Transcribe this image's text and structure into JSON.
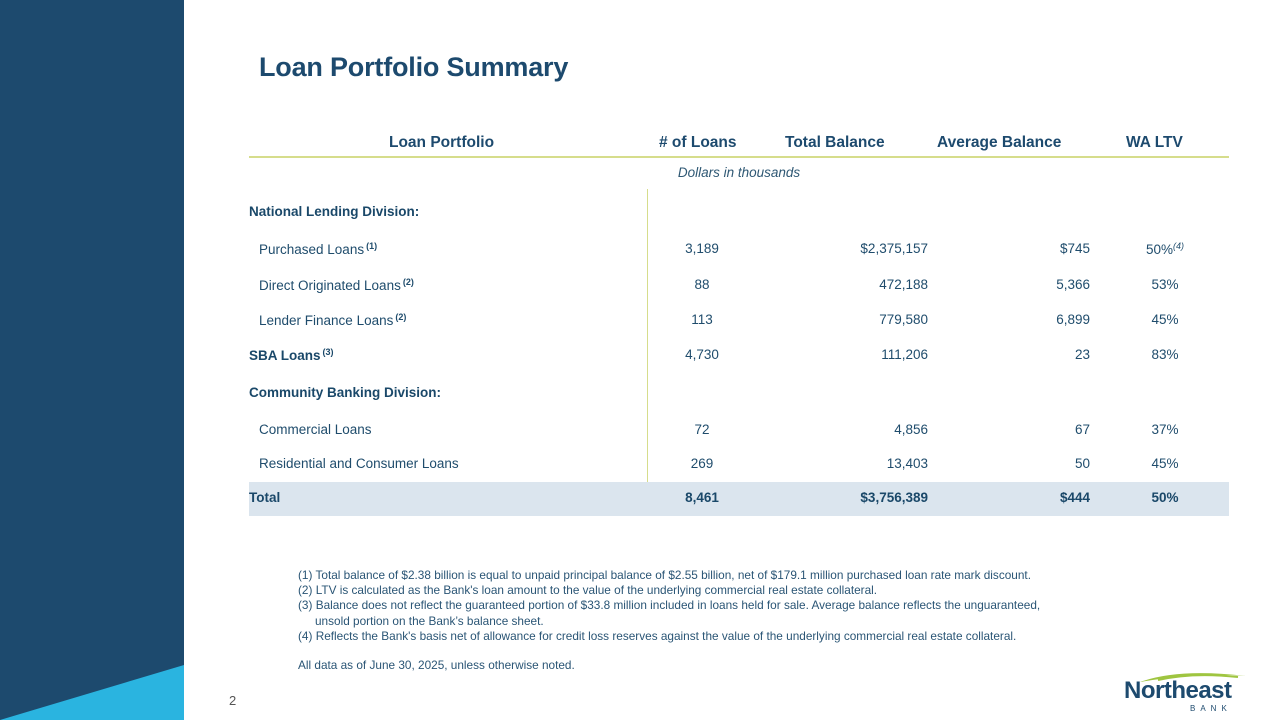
{
  "title": "Loan Portfolio Summary",
  "page_number": "2",
  "table": {
    "headers": {
      "portfolio": "Loan Portfolio",
      "num_loans": "# of Loans",
      "total_balance": "Total Balance",
      "average_balance": "Average Balance",
      "wa_ltv": "WA LTV"
    },
    "units": "Dollars in thousands",
    "rows": [
      {
        "label": "National Lending Division:"
      },
      {
        "label": "Purchased Loans",
        "note": "(1)",
        "num_loans": "3,189",
        "total_balance": "$2,375,157",
        "average_balance": "$745",
        "wa_ltv": "50%",
        "ltv_note": "(4)"
      },
      {
        "label": "Direct Originated Loans",
        "note": "(2)",
        "num_loans": "88",
        "total_balance": "472,188",
        "average_balance": "5,366",
        "wa_ltv": "53%"
      },
      {
        "label": "Lender Finance Loans",
        "note": "(2)",
        "num_loans": "113",
        "total_balance": "779,580",
        "average_balance": "6,899",
        "wa_ltv": "45%"
      },
      {
        "label": "SBA Loans",
        "note": "(3)",
        "num_loans": "4,730",
        "total_balance": "111,206",
        "average_balance": "23",
        "wa_ltv": "83%"
      },
      {
        "label": "Community Banking Division:"
      },
      {
        "label": "Commercial Loans",
        "num_loans": "72",
        "total_balance": "4,856",
        "average_balance": "67",
        "wa_ltv": "37%"
      },
      {
        "label": "Residential and Consumer Loans",
        "num_loans": "269",
        "total_balance": "13,403",
        "average_balance": "50",
        "wa_ltv": "45%"
      },
      {
        "label": "Total",
        "num_loans": "8,461",
        "total_balance": "$3,756,389",
        "average_balance": "$444",
        "wa_ltv": "50%"
      }
    ]
  },
  "footnotes": {
    "fn1": "(1) Total balance of $2.38 billion is equal to unpaid principal balance of $2.55 billion, net of $179.1 million purchased loan rate mark discount.",
    "fn2": "(2) LTV is calculated as the Bank's loan amount to the value of the underlying commercial real estate collateral.",
    "fn3a": "(3) Balance does not reflect the guaranteed portion of $33.8 million included in loans held for sale. Average balance reflects the unguaranteed,",
    "fn3b": "unsold portion on the Bank’s balance sheet.",
    "fn4": "(4) Reflects the Bank's basis net of allowance for credit loss reserves against the value of the underlying commercial real estate collateral.",
    "as_of": "All data as of June 30, 2025, unless otherwise noted."
  },
  "logo": {
    "word": "Northeast",
    "sub": "BANK"
  },
  "colors": {
    "navy": "#1d4a6e",
    "cyan": "#2ab4e0",
    "rule_green": "#d6dd8c",
    "total_bg": "#dbe5ee",
    "logo_green": "#9fc540"
  }
}
